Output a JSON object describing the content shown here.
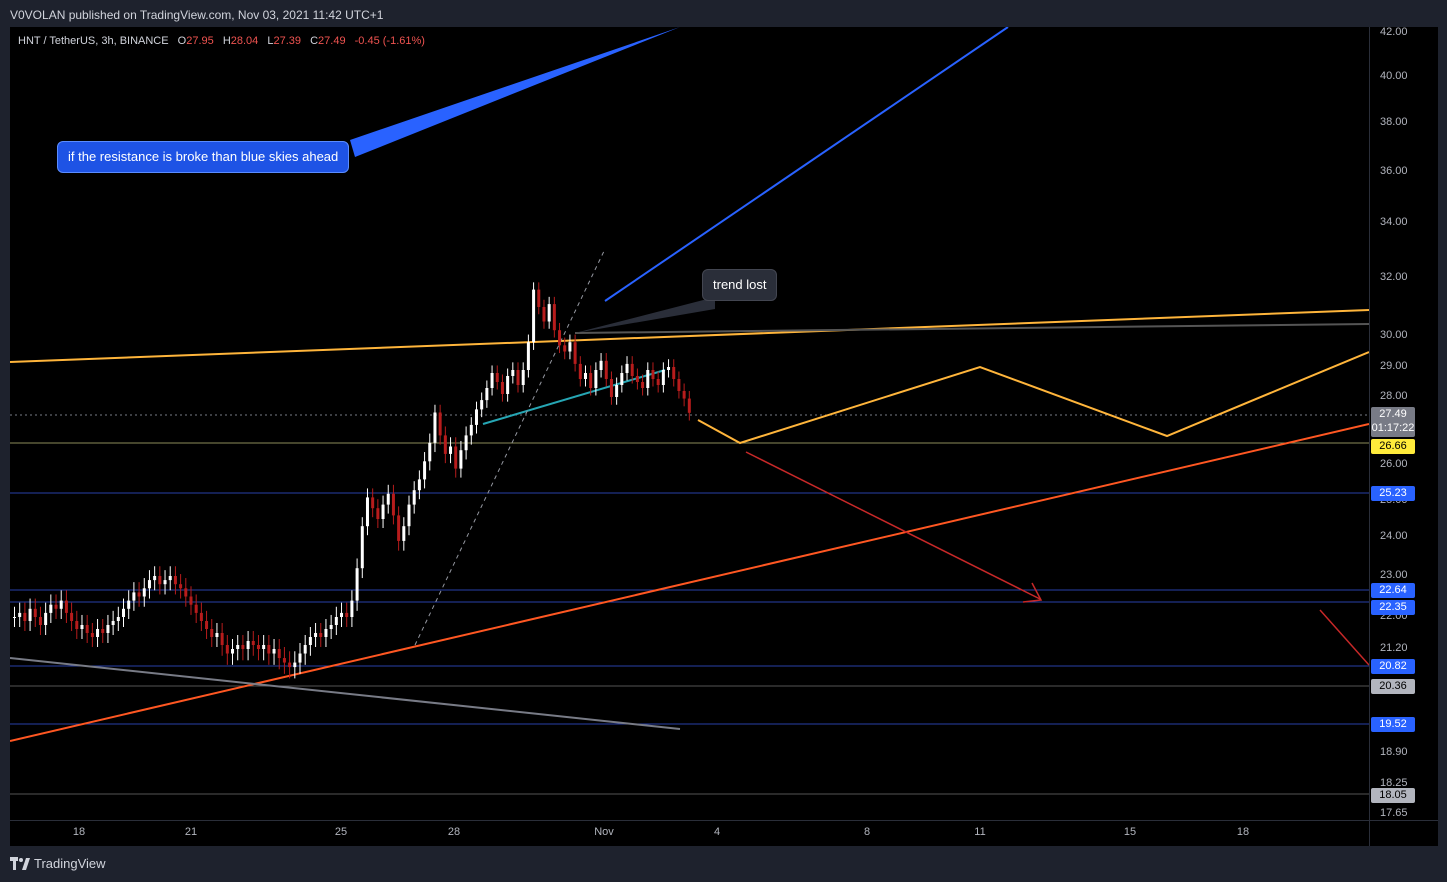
{
  "header": {
    "publisher": "V0VOLAN published on TradingView.com, Nov 03, 2021 11:42 UTC+1"
  },
  "legend": {
    "symbol": "HNT / TetherUS, 3h, BINANCE",
    "o_label": "O",
    "o": "27.95",
    "h_label": "H",
    "h": "28.04",
    "l_label": "L",
    "l": "27.39",
    "c_label": "C",
    "c": "27.49",
    "chg": "-0.45 (-1.61%)"
  },
  "annotations": {
    "blue_note": "if the resistance is broke than blue skies ahead",
    "trend_note": "trend lost"
  },
  "footer": {
    "brand": "TradingView"
  },
  "colors": {
    "up": "#ffffff",
    "down": "#b71c1c",
    "blue": "#2962ff",
    "orange": "#ff5722",
    "yellow": "#ffb53b",
    "teal": "#26a6b4",
    "grey": "#787b86",
    "red": "#d32f2f"
  },
  "chart_data": {
    "type": "candlestick",
    "instrument": "HNT / TetherUS",
    "interval": "3h",
    "exchange": "BINANCE",
    "x_ticks": [
      "18",
      "21",
      "25",
      "28",
      "Nov",
      "4",
      "8",
      "11",
      "15",
      "18"
    ],
    "y_ticks": [
      "42.00",
      "40.00",
      "38.00",
      "36.00",
      "34.00",
      "32.00",
      "30.00",
      "29.00",
      "28.00",
      "27.00",
      "26.00",
      "25.00",
      "24.00",
      "23.00",
      "22.00",
      "21.20",
      "18.90",
      "18.25",
      "17.65"
    ],
    "price_labels": [
      {
        "value": "27.49",
        "sub": "01:17:22"
      },
      {
        "value": "26.66"
      },
      {
        "value": "25.23"
      },
      {
        "value": "22.64"
      },
      {
        "value": "22.35"
      },
      {
        "value": "20.82"
      },
      {
        "value": "20.36"
      },
      {
        "value": "19.52"
      },
      {
        "value": "18.05"
      }
    ],
    "last": {
      "open": 27.95,
      "high": 28.04,
      "low": 27.39,
      "close": 27.49
    }
  }
}
